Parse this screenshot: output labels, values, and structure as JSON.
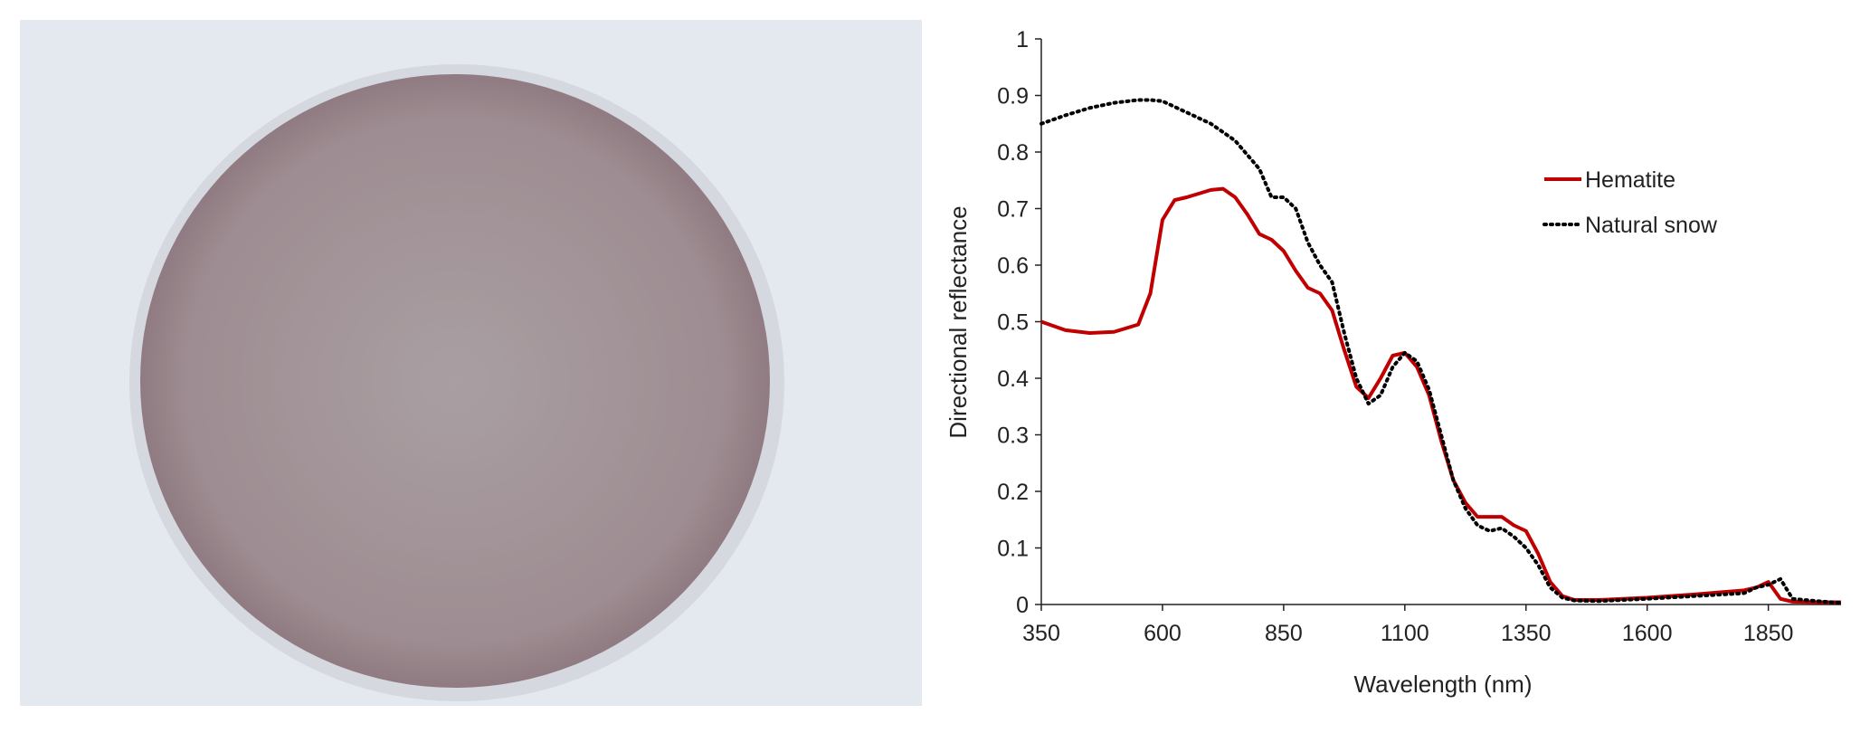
{
  "chart_data": {
    "type": "line",
    "xlabel": "Wavelength (nm)",
    "ylabel": "Directional reflectance",
    "x": [
      350,
      400,
      450,
      500,
      550,
      575,
      600,
      625,
      650,
      700,
      725,
      750,
      775,
      800,
      825,
      850,
      875,
      900,
      925,
      950,
      975,
      1000,
      1025,
      1050,
      1075,
      1100,
      1125,
      1150,
      1175,
      1200,
      1225,
      1250,
      1275,
      1300,
      1325,
      1350,
      1375,
      1400,
      1425,
      1450,
      1500,
      1600,
      1700,
      1800,
      1825,
      1850,
      1875,
      1900,
      1950,
      2000
    ],
    "series": [
      {
        "name": "Hematite",
        "color": "#c00000",
        "style": "solid",
        "values": [
          0.5,
          0.485,
          0.48,
          0.482,
          0.495,
          0.55,
          0.68,
          0.715,
          0.72,
          0.733,
          0.735,
          0.72,
          0.69,
          0.655,
          0.645,
          0.625,
          0.59,
          0.56,
          0.55,
          0.52,
          0.45,
          0.385,
          0.365,
          0.4,
          0.44,
          0.445,
          0.42,
          0.37,
          0.29,
          0.22,
          0.18,
          0.155,
          0.155,
          0.155,
          0.14,
          0.13,
          0.09,
          0.04,
          0.015,
          0.008,
          0.008,
          0.012,
          0.018,
          0.025,
          0.03,
          0.04,
          0.01,
          0.005,
          0.004,
          0.004
        ]
      },
      {
        "name": "Natural snow",
        "color": "#000000",
        "style": "dotted",
        "values": [
          0.85,
          0.865,
          0.878,
          0.887,
          0.892,
          0.892,
          0.89,
          0.88,
          0.87,
          0.85,
          0.835,
          0.82,
          0.795,
          0.77,
          0.72,
          0.72,
          0.7,
          0.64,
          0.6,
          0.57,
          0.48,
          0.4,
          0.355,
          0.37,
          0.42,
          0.445,
          0.43,
          0.38,
          0.3,
          0.22,
          0.17,
          0.14,
          0.13,
          0.135,
          0.12,
          0.1,
          0.07,
          0.03,
          0.012,
          0.007,
          0.006,
          0.01,
          0.015,
          0.02,
          0.03,
          0.035,
          0.045,
          0.01,
          0.006,
          0.003
        ]
      }
    ],
    "xlim": [
      350,
      2000
    ],
    "xticks": [
      350,
      600,
      850,
      1100,
      1350,
      1600,
      1850
    ],
    "ylim": [
      0,
      1
    ],
    "yticks": [
      0,
      0.1,
      0.2,
      0.3,
      0.4,
      0.5,
      0.6,
      0.7,
      0.8,
      0.9,
      1
    ],
    "grid": false,
    "legend": "upper right"
  }
}
